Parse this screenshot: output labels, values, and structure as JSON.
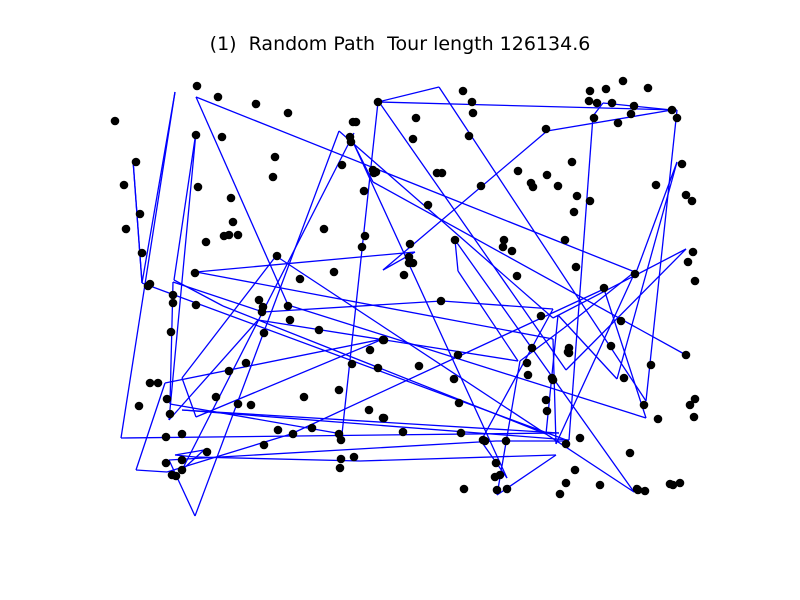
{
  "chart_data": {
    "type": "scatter",
    "title": "(1)  Random Path  Tour length 126134.6",
    "xlabel": "",
    "ylabel": "",
    "axes_visible": false,
    "grid": false,
    "legend": "none",
    "colors": {
      "points": "#000000",
      "path": "#0000ff"
    },
    "xlim": [
      101,
      707
    ],
    "ylim": [
      527,
      65
    ],
    "points": {
      "x": [
        115,
        124,
        126,
        136,
        140,
        142,
        139,
        148,
        150,
        150,
        158,
        166,
        170,
        167,
        173,
        173,
        171,
        176,
        182,
        182,
        166,
        172,
        182,
        196,
        195,
        196,
        197,
        198,
        207,
        206,
        216,
        218,
        222,
        224,
        229,
        229,
        231,
        233,
        238,
        238,
        246,
        251,
        256,
        259,
        262,
        263,
        264,
        264,
        273,
        275,
        277,
        278,
        288,
        288,
        290,
        293,
        300,
        304,
        312,
        319,
        324,
        334,
        339,
        339,
        341,
        340,
        341,
        342,
        352,
        351,
        350,
        353,
        354,
        356,
        362,
        365,
        364,
        370,
        369,
        373,
        374,
        376,
        378,
        378,
        383,
        384,
        383,
        384,
        403,
        404,
        409,
        410,
        409,
        413,
        416,
        413,
        419,
        428,
        437,
        442,
        441,
        455,
        458,
        454,
        459,
        461,
        463,
        464,
        469,
        473,
        472,
        481,
        485,
        483,
        496,
        497,
        495,
        500,
        507,
        506,
        512,
        518,
        503,
        504,
        517,
        527,
        528,
        533,
        531,
        532,
        541,
        546,
        547,
        546,
        547,
        552,
        553,
        558,
        560,
        565,
        566,
        566,
        569,
        569,
        568,
        572,
        574,
        575,
        576,
        577,
        580,
        589,
        590,
        590,
        594,
        597,
        600,
        604,
        606,
        612,
        611,
        618,
        621,
        623,
        624,
        631,
        630,
        634,
        635,
        637,
        638,
        644,
        645,
        648,
        651,
        656,
        658,
        670,
        672,
        673,
        677,
        680,
        682,
        686,
        688,
        686,
        690,
        692,
        693,
        695,
        694,
        695
      ],
      "y": [
        121,
        185,
        229,
        162,
        214,
        253,
        406,
        286,
        284,
        383,
        383,
        437,
        414,
        399,
        295,
        303,
        332,
        476,
        434,
        460,
        463,
        475,
        470,
        305,
        273,
        135,
        86,
        187,
        452,
        242,
        397,
        97,
        137,
        236,
        371,
        235,
        198,
        222,
        235,
        404,
        363,
        405,
        104,
        300,
        312,
        307,
        333,
        445,
        177,
        157,
        256,
        430,
        113,
        306,
        320,
        434,
        279,
        397,
        428,
        330,
        229,
        272,
        434,
        390,
        459,
        468,
        440,
        165,
        364,
        142,
        137,
        122,
        457,
        122,
        247,
        236,
        191,
        350,
        410,
        170,
        173,
        172,
        368,
        102,
        340,
        340,
        418,
        418,
        432,
        275,
        263,
        244,
        257,
        139,
        118,
        263,
        366,
        205,
        173,
        173,
        301,
        240,
        355,
        379,
        403,
        433,
        91,
        489,
        136,
        113,
        102,
        186,
        441,
        440,
        463,
        490,
        477,
        475,
        489,
        441,
        251,
        171,
        247,
        240,
        276,
        363,
        375,
        187,
        183,
        348,
        316,
        129,
        175,
        400,
        411,
        378,
        380,
        186,
        494,
        240,
        444,
        483,
        348,
        353,
        352,
        162,
        212,
        470,
        267,
        196,
        438,
        101,
        91,
        201,
        118,
        103,
        485,
        288,
        89,
        103,
        346,
        123,
        321,
        81,
        378,
        114,
        453,
        106,
        274,
        489,
        490,
        405,
        491,
        88,
        365,
        185,
        419,
        484,
        110,
        485,
        118,
        483,
        164,
        195,
        262,
        355,
        405,
        201,
        252,
        281,
        417,
        399
      ]
    },
    "tour": {
      "x": [
        686,
        373,
        353,
        507,
        481,
        553,
        442,
        263,
        173,
        170,
        342,
        378,
        439,
        646,
        677,
        379,
        566,
        686,
        553,
        339,
        195,
        169,
        496,
        569,
        142,
        133,
        142,
        175,
        121,
        559,
        182,
        569,
        593,
        603,
        672,
        547,
        383,
        415,
        196,
        553,
        556,
        635,
        196,
        288,
        646,
        604,
        291,
        167,
        136,
        165,
        383,
        196,
        182,
        276,
        634,
        455,
        458,
        518,
        258,
        169,
        196,
        174,
        223,
        546,
        558,
        617,
        677,
        637,
        564,
        520,
        497,
        556,
        360,
        195,
        175,
        204,
        182,
        354
      ],
      "y": [
        355,
        182,
        142,
        478,
        441,
        309,
        301,
        312,
        282,
        404,
        434,
        102,
        87,
        401,
        110,
        102,
        370,
        249,
        318,
        131,
        516,
        460,
        441,
        441,
        283,
        160,
        283,
        92,
        438,
        433,
        410,
        440,
        116,
        103,
        110,
        131,
        270,
        252,
        272,
        339,
        444,
        272,
        97,
        305,
        418,
        289,
        434,
        472,
        470,
        383,
        339,
        417,
        378,
        256,
        492,
        240,
        271,
        361,
        320,
        420,
        132,
        280,
        306,
        434,
        315,
        379,
        162,
        270,
        328,
        361,
        495,
        455,
        461,
        457,
        455,
        450,
        470,
        133
      ]
    }
  }
}
